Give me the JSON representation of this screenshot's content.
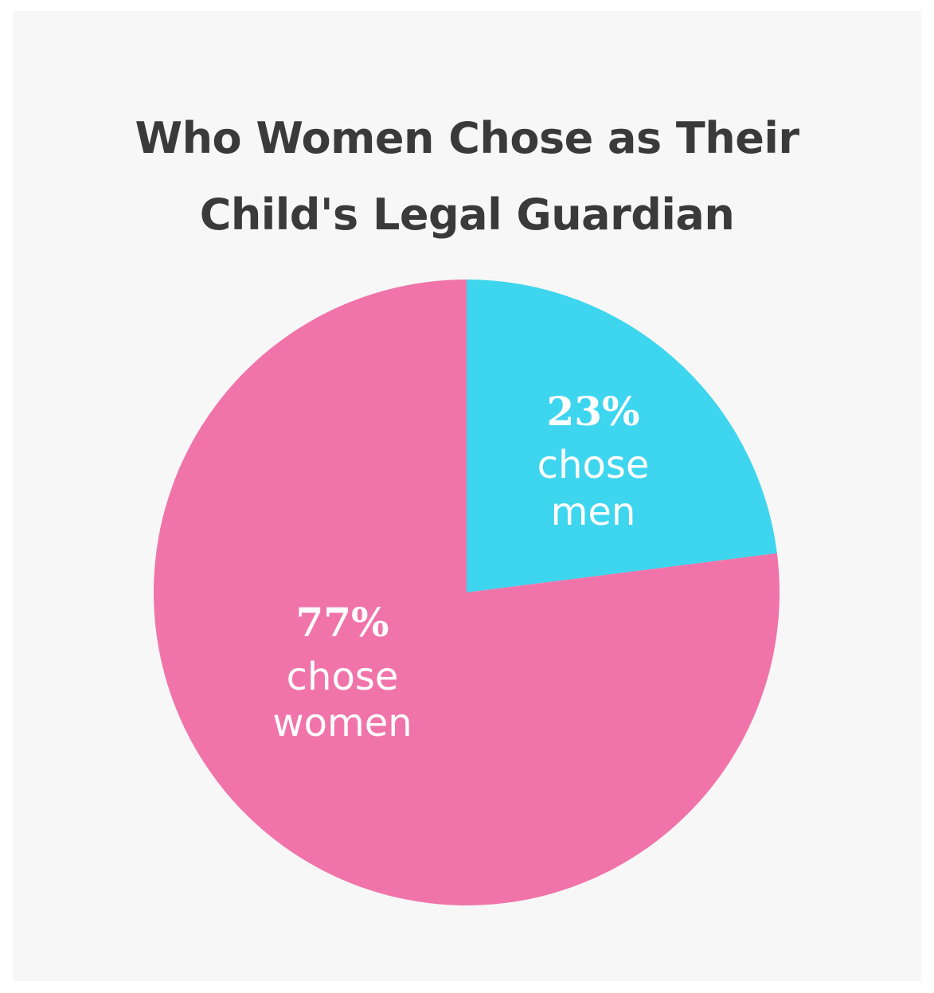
{
  "chart_data": {
    "type": "pie",
    "title_lines": [
      "Who Women Chose as Their",
      "Child's Legal Guardian"
    ],
    "slices": [
      {
        "name": "men",
        "value": 23,
        "pct_label": "23%",
        "text_lines": [
          "chose",
          "men"
        ],
        "color": "#3ed5ee"
      },
      {
        "name": "women",
        "value": 77,
        "pct_label": "77%",
        "text_lines": [
          "chose",
          "women"
        ],
        "color": "#f074aa"
      }
    ],
    "start": "12 o'clock",
    "direction": "clockwise"
  },
  "colors": {
    "background": "#f7f7f7",
    "title": "#3a3a3a",
    "label": "#ffffff"
  }
}
